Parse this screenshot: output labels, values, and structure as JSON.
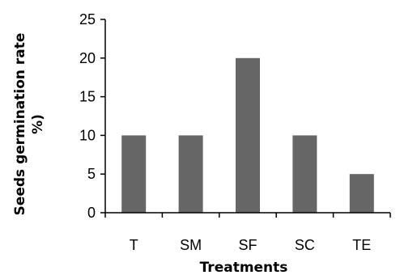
{
  "chart_data": {
    "type": "bar",
    "categories": [
      "T",
      "SM",
      "SF",
      "SC",
      "TE"
    ],
    "values": [
      10,
      10,
      20,
      10,
      5
    ],
    "xlabel": "Treatments",
    "ylabel_lines": [
      "Seeds germination rate",
      "%)"
    ],
    "ylim": [
      0,
      25
    ],
    "yticks": [
      0,
      5,
      10,
      15,
      20,
      25
    ],
    "bar_color": "#666666",
    "grid": false,
    "legend": "none"
  }
}
